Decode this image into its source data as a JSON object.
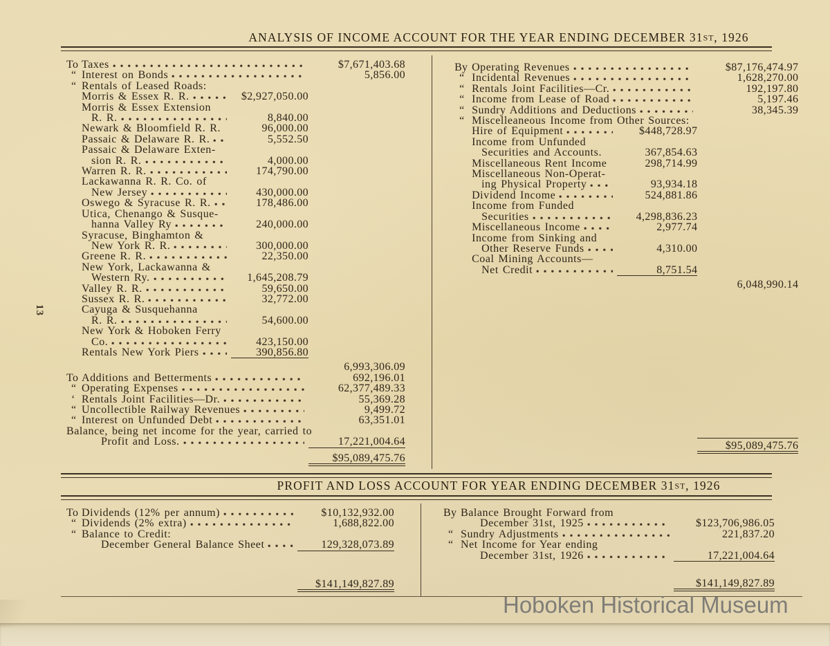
{
  "page": {
    "number": "13",
    "watermark": "Hoboken Historical Museum"
  },
  "income": {
    "title": {
      "pre": "ANALYSIS OF INCOME ACCOUNT FOR THE YEAR ENDING DECEMBER 31",
      "st": "ST",
      "post": ", 1926"
    },
    "debit_rows": [
      {
        "pre": "To",
        "t": "Taxes",
        "d": true,
        "a": "$7,671,403.68",
        "c": "out"
      },
      {
        "pre": "“",
        "t": "Interest on Bonds",
        "d": true,
        "a": "5,856.00",
        "c": "out"
      },
      {
        "pre": "“",
        "t": "Rentals of Leased Roads:"
      },
      {
        "pre": "",
        "t": "Morris & Essex R. R.",
        "d": true,
        "a": "$2,927,050.00",
        "c": "in"
      },
      {
        "pre": "",
        "t": "Morris & Essex Extension"
      },
      {
        "pre": "",
        "t": "R. R.",
        "ind": 1,
        "d": true,
        "a": "8,840.00",
        "c": "in"
      },
      {
        "pre": "",
        "t": "Newark & Bloomfield R. R.",
        "a": "96,000.00",
        "c": "in"
      },
      {
        "pre": "",
        "t": "Passaic & Delaware R. R.",
        "d": true,
        "a": "5,552.50",
        "c": "in"
      },
      {
        "pre": "",
        "t": "Passaic & Delaware Exten-"
      },
      {
        "pre": "",
        "t": "sion R. R.",
        "ind": 1,
        "d": true,
        "a": "4,000.00",
        "c": "in"
      },
      {
        "pre": "",
        "t": "Warren R. R.",
        "d": true,
        "a": "174,790.00",
        "c": "in"
      },
      {
        "pre": "",
        "t": "Lackawanna R. R. Co. of"
      },
      {
        "pre": "",
        "t": "New Jersey",
        "ind": 1,
        "d": true,
        "a": "430,000.00",
        "c": "in"
      },
      {
        "pre": "",
        "t": "Oswego & Syracuse R. R.",
        "d": true,
        "a": "178,486.00",
        "c": "in"
      },
      {
        "pre": "",
        "t": "Utica, Chenango & Susque-"
      },
      {
        "pre": "",
        "t": "hanna Valley Ry",
        "ind": 1,
        "d": true,
        "a": "240,000.00",
        "c": "in"
      },
      {
        "pre": "",
        "t": "Syracuse, Binghamton &"
      },
      {
        "pre": "",
        "t": "New York R. R.",
        "ind": 1,
        "d": true,
        "a": "300,000.00",
        "c": "in"
      },
      {
        "pre": "",
        "t": "Greene R. R.",
        "d": true,
        "a": "22,350.00",
        "c": "in"
      },
      {
        "pre": "",
        "t": "New York, Lackawanna &"
      },
      {
        "pre": "",
        "t": "Western Ry.",
        "ind": 1,
        "d": true,
        "a": "1,645,208.79",
        "c": "in"
      },
      {
        "pre": "",
        "t": "Valley R. R.",
        "d": true,
        "a": "59,650.00",
        "c": "in"
      },
      {
        "pre": "",
        "t": "Sussex R. R.",
        "d": true,
        "a": "32,772.00",
        "c": "in"
      },
      {
        "pre": "",
        "t": "Cayuga & Susquehanna"
      },
      {
        "pre": "",
        "t": "R. R.",
        "ind": 1,
        "d": true,
        "a": "54,600.00",
        "c": "in"
      },
      {
        "pre": "",
        "t": "New York & Hoboken Ferry"
      },
      {
        "pre": "",
        "t": "Co.",
        "ind": 1,
        "d": true,
        "a": "423,150.00",
        "c": "in"
      },
      {
        "pre": "",
        "t": "Rentals New York Piers",
        "d": true,
        "a": "390,856.80",
        "c": "in",
        "u": "s"
      },
      {
        "pre": "",
        "t": "",
        "a": "6,993,306.09",
        "c": "out",
        "gap": 5
      },
      {
        "pre": "To",
        "t": "Additions and Betterments",
        "d": true,
        "a": "692,196.01",
        "c": "out"
      },
      {
        "pre": "“",
        "t": "Operating Expenses",
        "d": true,
        "a": "62,377,489.33",
        "c": "out"
      },
      {
        "pre": "‘",
        "t": "Rentals Joint Facilities—Dr.",
        "d": true,
        "a": "55,369.28",
        "c": "out"
      },
      {
        "pre": "“",
        "t": "Uncollectible Railway Revenues",
        "d": true,
        "a": "9,499.72",
        "c": "out"
      },
      {
        "pre": "“",
        "t": "Interest on Unfunded Debt",
        "d": true,
        "a": "63,351.01",
        "c": "out"
      },
      {
        "t": "Balance, being net income for the year, carried to"
      },
      {
        "pre": "",
        "t": "Profit and Loss.",
        "ind": 2,
        "d": true,
        "a": "17,221,004.64",
        "c": "out",
        "u": "s"
      },
      {
        "pre": "",
        "t": "",
        "a": "$95,089,475.76",
        "c": "out",
        "u": "d",
        "gap": 7
      }
    ],
    "credit_rows": [
      {
        "pre": "By",
        "t": "Operating Revenues",
        "d": true,
        "a": "$87,176,474.97",
        "c": "out"
      },
      {
        "pre": "“",
        "t": "Incidental Revenues",
        "d": true,
        "a": "1,628,270.00",
        "c": "out"
      },
      {
        "pre": "“",
        "t": "Rentals Joint Facilities—Cr.",
        "d": true,
        "a": "192,197.80",
        "c": "out"
      },
      {
        "pre": "“",
        "t": "Income from Lease of Road",
        "d": true,
        "a": "5,197.46",
        "c": "out"
      },
      {
        "pre": "“",
        "t": "Sundry Additions and Deductions",
        "d": true,
        "a": "38,345.39",
        "c": "out"
      },
      {
        "pre": "“",
        "t": "Miscelleaneous Income from Other Sources:"
      },
      {
        "pre": "",
        "t": "Hire of Equipment",
        "d": true,
        "a": "$448,728.97",
        "c": "in"
      },
      {
        "pre": "",
        "t": "Income from Unfunded"
      },
      {
        "pre": "",
        "t": "Securities and Accounts.",
        "ind": 1,
        "a": "367,854.63",
        "c": "in"
      },
      {
        "pre": "",
        "t": "Miscellaneous Rent Income",
        "a": "298,714.99",
        "c": "in"
      },
      {
        "pre": "",
        "t": "Miscellaneous Non-Operat-"
      },
      {
        "pre": "",
        "t": "ing Physical Property",
        "ind": 1,
        "d": true,
        "a": "93,934.18",
        "c": "in"
      },
      {
        "pre": "",
        "t": "Dividend Income",
        "d": true,
        "a": "524,881.86",
        "c": "in"
      },
      {
        "pre": "",
        "t": "Income from Funded"
      },
      {
        "pre": "",
        "t": "Securities",
        "ind": 1,
        "d": true,
        "a": "4,298,836.23",
        "c": "in"
      },
      {
        "pre": "",
        "t": "Miscellaneous Income",
        "d": true,
        "a": "2,977.74",
        "c": "in"
      },
      {
        "pre": "",
        "t": "Income from Sinking and"
      },
      {
        "pre": "",
        "t": "Other Reserve Funds",
        "ind": 1,
        "d": true,
        "a": "4,310.00",
        "c": "in"
      },
      {
        "pre": "",
        "t": "Coal Mining Accounts—"
      },
      {
        "pre": "",
        "t": "Net Credit",
        "ind": 1,
        "d": true,
        "a": "8,751.54",
        "c": "in",
        "u": "s"
      },
      {
        "pre": "",
        "t": "",
        "a": "6,048,990.14",
        "c": "out",
        "gap": 5
      },
      {
        "pre": "",
        "t": "",
        "a": "$95,089,475.76",
        "c": "out",
        "u": "d",
        "o": "s",
        "gap": 213
      }
    ]
  },
  "pl": {
    "title": {
      "pre": "PROFIT AND LOSS ACCOUNT FOR YEAR ENDING DECEMBER 31",
      "st": "ST",
      "post": ", 1926"
    },
    "debit_rows": [
      {
        "pre": "To",
        "t": "Dividends (12% per annum)",
        "d": true,
        "a": "$10,132,932.00",
        "c": "out"
      },
      {
        "pre": "“",
        "t": "Dividends (2% extra)",
        "d": true,
        "a": "1,688,822.00",
        "c": "out"
      },
      {
        "pre": "“",
        "t": "Balance to Credit:"
      },
      {
        "pre": "",
        "t": "December General Balance Sheet",
        "ind": 2,
        "d": true,
        "a": "129,328,073.89",
        "c": "out",
        "u": "s"
      },
      {
        "pre": "",
        "t": "",
        "a": "$141,149,827.89",
        "c": "out",
        "u": "d",
        "gap": 40
      }
    ],
    "credit_rows": [
      {
        "pre": "By",
        "t": "Balance Brought Forward from"
      },
      {
        "pre": "",
        "t": "December 31st, 1925",
        "ind": 2,
        "d": true,
        "a": "$123,706,986.05",
        "c": "out"
      },
      {
        "pre": "“",
        "t": "Sundry Adjustments",
        "d": true,
        "a": "221,837.20",
        "c": "out"
      },
      {
        "pre": "“",
        "t": "Net Income for Year ending"
      },
      {
        "pre": "",
        "t": "December 31st, 1926",
        "ind": 2,
        "d": true,
        "a": "17,221,004.64",
        "c": "out",
        "u": "s"
      },
      {
        "pre": "",
        "t": "",
        "a": "$141,149,827.89",
        "c": "out",
        "u": "d",
        "gap": 24
      }
    ]
  }
}
